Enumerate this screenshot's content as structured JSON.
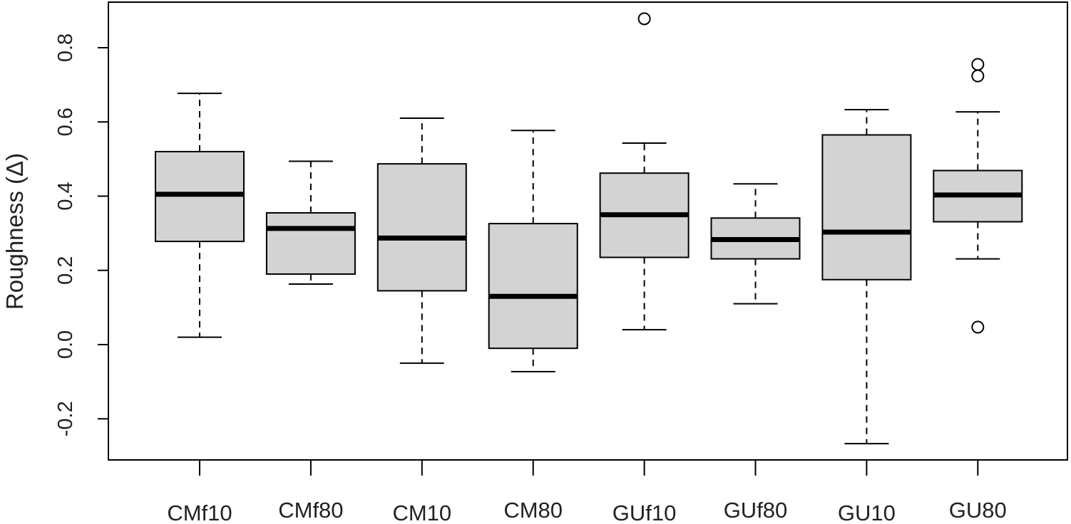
{
  "chart_data": {
    "type": "box",
    "title": "",
    "xlabel": "",
    "ylabel": "Roughness (Δ)",
    "ylim": [
      -0.31,
      0.925
    ],
    "yticks": [
      -0.2,
      0.0,
      0.2,
      0.4,
      0.6,
      0.8
    ],
    "ytick_labels": [
      "-0.2",
      "0.0",
      "0.2",
      "0.4",
      "0.6",
      "0.8"
    ],
    "grid": false,
    "box_fill": "#d3d3d3",
    "median_color": "#000000",
    "categories": [
      "CMf10",
      "CMf80",
      "CM10",
      "CM80",
      "GUf10",
      "GUf80",
      "GU10",
      "GU80"
    ],
    "boxes": [
      {
        "label": "CMf10",
        "whisker_low": 0.02,
        "q1": 0.278,
        "median": 0.405,
        "q3": 0.52,
        "whisker_high": 0.677,
        "outliers": []
      },
      {
        "label": "CMf80",
        "whisker_low": 0.163,
        "q1": 0.19,
        "median": 0.313,
        "q3": 0.355,
        "whisker_high": 0.494,
        "outliers": []
      },
      {
        "label": "CM10",
        "whisker_low": -0.05,
        "q1": 0.145,
        "median": 0.287,
        "q3": 0.487,
        "whisker_high": 0.61,
        "outliers": []
      },
      {
        "label": "CM80",
        "whisker_low": -0.073,
        "q1": -0.01,
        "median": 0.13,
        "q3": 0.326,
        "whisker_high": 0.577,
        "outliers": []
      },
      {
        "label": "GUf10",
        "whisker_low": 0.04,
        "q1": 0.235,
        "median": 0.35,
        "q3": 0.462,
        "whisker_high": 0.543,
        "outliers": [
          0.878
        ]
      },
      {
        "label": "GUf80",
        "whisker_low": 0.11,
        "q1": 0.231,
        "median": 0.283,
        "q3": 0.341,
        "whisker_high": 0.433,
        "outliers": []
      },
      {
        "label": "GU10",
        "whisker_low": -0.267,
        "q1": 0.175,
        "median": 0.303,
        "q3": 0.565,
        "whisker_high": 0.633,
        "outliers": []
      },
      {
        "label": "GU80",
        "whisker_low": 0.231,
        "q1": 0.331,
        "median": 0.403,
        "q3": 0.469,
        "whisker_high": 0.627,
        "outliers": [
          0.755,
          0.724,
          0.047
        ]
      }
    ]
  }
}
